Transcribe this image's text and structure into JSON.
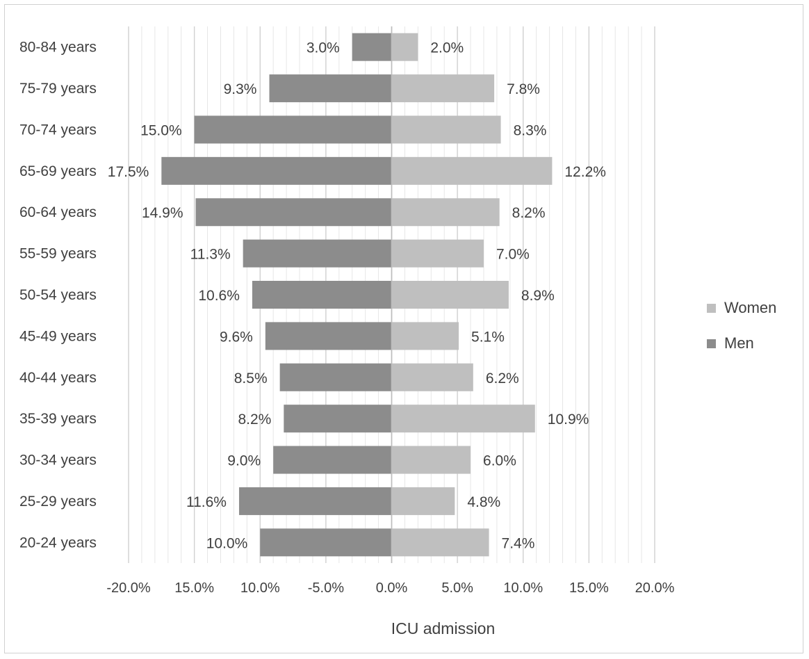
{
  "chart_data": {
    "type": "bar",
    "orientation": "horizontal",
    "layout": "diverging population pyramid",
    "categories": [
      "80-84 years",
      "75-79 years",
      "70-74 years",
      "65-69 years",
      "60-64 years",
      "55-59 years",
      "50-54 years",
      "45-49 years",
      "40-44 years",
      "35-39 years",
      "30-34 years",
      "25-29 years",
      "20-24 years"
    ],
    "series": [
      {
        "name": "Women",
        "color": "#bfbfbf",
        "values": [
          2.0,
          7.8,
          8.3,
          12.2,
          8.2,
          7.0,
          8.9,
          5.1,
          6.2,
          10.9,
          6.0,
          4.8,
          7.4
        ],
        "labels": [
          "2.0%",
          "7.8%",
          "8.3%",
          "12.2%",
          "8.2%",
          "7.0%",
          "8.9%",
          "5.1%",
          "6.2%",
          "10.9%",
          "6.0%",
          "4.8%",
          "7.4%"
        ]
      },
      {
        "name": "Men",
        "color": "#8c8c8c",
        "values": [
          -3.0,
          -9.3,
          -15.0,
          -17.5,
          -14.9,
          -11.3,
          -10.6,
          -9.6,
          -8.5,
          -8.2,
          -9.0,
          -11.6,
          -10.0
        ],
        "labels": [
          "3.0%",
          "9.3%",
          "15.0%",
          "17.5%",
          "14.9%",
          "11.3%",
          "10.6%",
          "9.6%",
          "8.5%",
          "8.2%",
          "9.0%",
          "11.6%",
          "10.0%"
        ]
      }
    ],
    "xlabel": "ICU admission",
    "ylabel": "",
    "xlim": [
      -20,
      20
    ],
    "xticks": [
      -20,
      -15,
      -10,
      -5,
      0,
      5,
      10,
      15,
      20
    ],
    "xtick_labels": [
      "-20.0%",
      "15.0%",
      "10.0%",
      "-5.0%",
      "0.0%",
      "5.0%",
      "10.0%",
      "15.0%",
      "20.0%"
    ],
    "grid": true,
    "legend_position": "right"
  }
}
